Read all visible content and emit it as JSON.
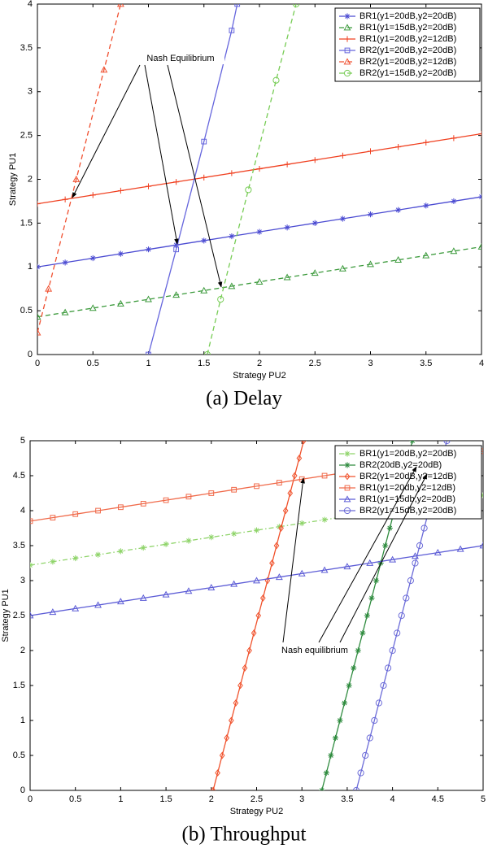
{
  "chart_data": [
    {
      "type": "line",
      "caption": "(a) Delay",
      "xlabel": "Strategy PU2",
      "ylabel": "Strategy PU1",
      "annotation": "Nash Equilibrium",
      "xlim": [
        0,
        4
      ],
      "ylim": [
        0,
        4
      ],
      "xticks": [
        0,
        0.5,
        1,
        1.5,
        2,
        2.5,
        3,
        3.5,
        4
      ],
      "yticks": [
        0,
        0.5,
        1,
        1.5,
        2,
        2.5,
        3,
        3.5,
        4
      ],
      "legend": "upper right",
      "series": [
        {
          "name": "BR1(y1=20dB,y2=20dB)",
          "color": "#4b4bd2",
          "marker": "star",
          "dash": "solid",
          "x": [
            0,
            0.25,
            0.5,
            0.75,
            1,
            1.25,
            1.5,
            1.75,
            2,
            2.25,
            2.5,
            2.75,
            3,
            3.25,
            3.5,
            3.75,
            4
          ],
          "values": [
            1,
            1.05,
            1.1,
            1.15,
            1.2,
            1.25,
            1.3,
            1.35,
            1.4,
            1.45,
            1.5,
            1.55,
            1.6,
            1.65,
            1.7,
            1.75,
            1.8
          ]
        },
        {
          "name": "BR1(y1=15dB,y2=20dB)",
          "color": "#3c9a3c",
          "marker": "triangle",
          "dash": "dashed",
          "x": [
            0,
            0.25,
            0.5,
            0.75,
            1,
            1.25,
            1.5,
            1.75,
            2,
            2.25,
            2.5,
            2.75,
            3,
            3.25,
            3.5,
            3.75,
            4
          ],
          "values": [
            0.43,
            0.48,
            0.53,
            0.58,
            0.63,
            0.68,
            0.73,
            0.78,
            0.83,
            0.88,
            0.93,
            0.98,
            1.03,
            1.08,
            1.13,
            1.18,
            1.23
          ]
        },
        {
          "name": "BR1(y1=20dB,y2=12dB)",
          "color": "#f04020",
          "marker": "plus",
          "dash": "solid",
          "x": [
            0,
            0.25,
            0.5,
            0.75,
            1,
            1.25,
            1.5,
            1.75,
            2,
            2.25,
            2.5,
            2.75,
            3,
            3.25,
            3.5,
            3.75,
            4
          ],
          "values": [
            1.72,
            1.77,
            1.82,
            1.87,
            1.92,
            1.97,
            2.02,
            2.07,
            2.12,
            2.17,
            2.22,
            2.27,
            2.32,
            2.37,
            2.42,
            2.47,
            2.52
          ]
        },
        {
          "name": "BR2(y1=20dB,y2=20dB)",
          "color": "#6666dd",
          "marker": "square",
          "dash": "solid",
          "x": [
            1,
            1.25,
            1.5,
            1.75,
            1.8
          ],
          "values": [
            0,
            1.2,
            2.43,
            3.7,
            4
          ]
        },
        {
          "name": "BR2(y1=20dB,y2=12dB)",
          "color": "#f05030",
          "marker": "triangle",
          "dash": "dashed",
          "x": [
            0,
            0.1,
            0.35,
            0.6,
            0.75
          ],
          "values": [
            0.25,
            0.75,
            2,
            3.25,
            4
          ]
        },
        {
          "name": "BR2(y1=15dB,y2=20dB)",
          "color": "#77cc55",
          "marker": "circle",
          "dash": "dashed",
          "x": [
            1.53,
            1.65,
            1.9,
            2.15,
            2.33
          ],
          "values": [
            0,
            0.63,
            1.88,
            3.13,
            4
          ]
        }
      ]
    },
    {
      "type": "line",
      "caption": "(b) Throughput",
      "xlabel": "Strategy PU2",
      "ylabel": "Strategy PU1",
      "annotation": "Nash equilibrium",
      "xlim": [
        0,
        5
      ],
      "ylim": [
        0,
        5
      ],
      "xticks": [
        0,
        0.5,
        1,
        1.5,
        2,
        2.5,
        3,
        3.5,
        4,
        4.5,
        5
      ],
      "yticks": [
        0,
        0.5,
        1,
        1.5,
        2,
        2.5,
        3,
        3.5,
        4,
        4.5,
        5
      ],
      "legend": "upper right",
      "series": [
        {
          "name": "BR1(y1=20dB,y2=20dB)",
          "color": "#8fd46a",
          "marker": "star",
          "dash": "dashdot",
          "x": [
            0,
            0.25,
            0.5,
            0.75,
            1,
            1.25,
            1.5,
            1.75,
            2,
            2.25,
            2.5,
            2.75,
            3,
            3.25,
            3.5,
            3.75,
            4,
            4.25,
            4.5,
            4.75,
            5
          ],
          "values": [
            3.22,
            3.27,
            3.32,
            3.37,
            3.42,
            3.47,
            3.52,
            3.57,
            3.62,
            3.67,
            3.72,
            3.77,
            3.82,
            3.87,
            3.92,
            3.97,
            4.02,
            4.07,
            4.12,
            4.17,
            4.22
          ]
        },
        {
          "name": "BR2(20dB,y2=20dB)",
          "color": "#2e8b3e",
          "marker": "star",
          "dash": "solid",
          "x": [
            3.22,
            3.27,
            3.32,
            3.37,
            3.42,
            3.47,
            3.52,
            3.57,
            3.62,
            3.67,
            3.72,
            3.77,
            3.82,
            3.87,
            3.92,
            3.97,
            4.02,
            4.07,
            4.12,
            4.17,
            4.22
          ],
          "values": [
            0,
            0.25,
            0.5,
            0.75,
            1,
            1.25,
            1.5,
            1.75,
            2,
            2.25,
            2.5,
            2.75,
            3,
            3.25,
            3.5,
            3.75,
            4,
            4.25,
            4.5,
            4.75,
            5
          ]
        },
        {
          "name": "BR2(y1=20dB,y2=12dB)",
          "color": "#f0502a",
          "marker": "diamond",
          "dash": "solid",
          "x": [
            2.02,
            2.07,
            2.12,
            2.17,
            2.22,
            2.27,
            2.32,
            2.37,
            2.42,
            2.47,
            2.52,
            2.57,
            2.62,
            2.67,
            2.72,
            2.77,
            2.82,
            2.87,
            2.92,
            2.97,
            3.02
          ],
          "values": [
            0,
            0.25,
            0.5,
            0.75,
            1,
            1.25,
            1.5,
            1.75,
            2,
            2.25,
            2.5,
            2.75,
            3,
            3.25,
            3.5,
            3.75,
            4,
            4.25,
            4.5,
            4.75,
            5
          ]
        },
        {
          "name": "BR1(y1=20db,y2=12dB)",
          "color": "#f06a4a",
          "marker": "square",
          "dash": "solid",
          "x": [
            0,
            0.25,
            0.5,
            0.75,
            1,
            1.25,
            1.5,
            1.75,
            2,
            2.25,
            2.5,
            2.75,
            3,
            3.25,
            3.5,
            3.75,
            4,
            4.25,
            4.5,
            4.75,
            5
          ],
          "values": [
            3.85,
            3.9,
            3.95,
            4,
            4.05,
            4.1,
            4.15,
            4.2,
            4.25,
            4.3,
            4.35,
            4.4,
            4.45,
            4.5,
            4.55,
            4.6,
            4.65,
            4.7,
            4.75,
            4.8,
            4.85
          ]
        },
        {
          "name": "BR1(y1=15db,y2=20dB)",
          "color": "#5c5cd6",
          "marker": "triangle",
          "dash": "solid",
          "x": [
            0,
            0.25,
            0.5,
            0.75,
            1,
            1.25,
            1.5,
            1.75,
            2,
            2.25,
            2.5,
            2.75,
            3,
            3.25,
            3.5,
            3.75,
            4,
            4.25,
            4.5,
            4.75,
            5
          ],
          "values": [
            2.5,
            2.55,
            2.6,
            2.65,
            2.7,
            2.75,
            2.8,
            2.85,
            2.9,
            2.95,
            3,
            3.05,
            3.1,
            3.15,
            3.2,
            3.25,
            3.3,
            3.35,
            3.4,
            3.45,
            3.5
          ]
        },
        {
          "name": "BR2(y1=15dB,y2=20dB)",
          "color": "#6a6ad8",
          "marker": "circle",
          "dash": "solid",
          "x": [
            3.6,
            3.65,
            3.7,
            3.75,
            3.8,
            3.85,
            3.9,
            3.95,
            4,
            4.05,
            4.1,
            4.15,
            4.2,
            4.25,
            4.3,
            4.35,
            4.4,
            4.45,
            4.5,
            4.55,
            4.6
          ],
          "values": [
            0,
            0.25,
            0.5,
            0.75,
            1,
            1.25,
            1.5,
            1.75,
            2,
            2.25,
            2.5,
            2.75,
            3,
            3.25,
            3.5,
            3.75,
            4,
            4.25,
            4.5,
            4.75,
            5
          ]
        }
      ]
    }
  ]
}
